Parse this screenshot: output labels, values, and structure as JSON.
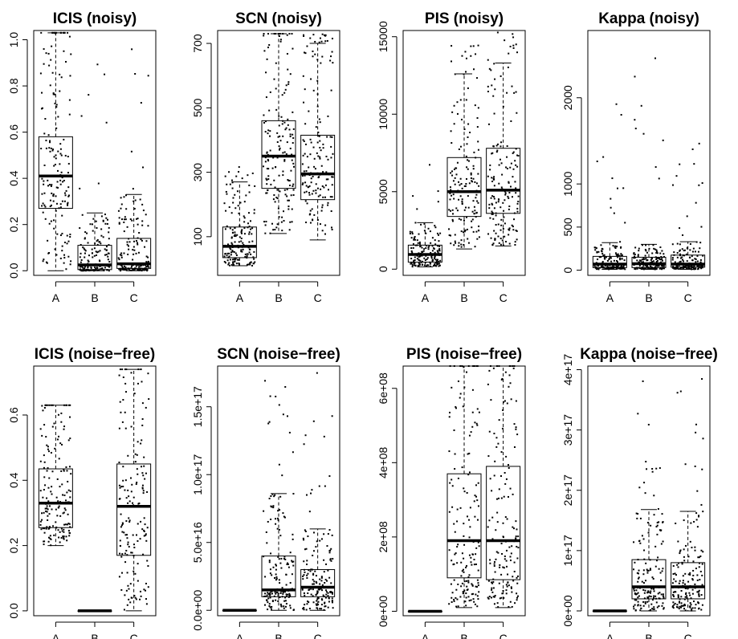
{
  "chart_data": [
    {
      "type": "box",
      "title": "ICIS (noisy)",
      "categories": [
        "A",
        "B",
        "C"
      ],
      "ylim": [
        -0.02,
        1.04
      ],
      "yticks": [
        0.0,
        0.2,
        0.4,
        0.6,
        0.8,
        1.0
      ],
      "ytick_labels": [
        "0.0",
        "0.2",
        "0.4",
        "0.6",
        "0.8",
        "1.0"
      ],
      "stats": [
        {
          "min": 0.0,
          "q1": 0.27,
          "median": 0.41,
          "q3": 0.58,
          "max": 1.03
        },
        {
          "min": 0.0,
          "q1": 0.005,
          "median": 0.025,
          "q3": 0.11,
          "max": 0.25,
          "outlier_max": 0.92
        },
        {
          "min": 0.0,
          "q1": 0.01,
          "median": 0.03,
          "q3": 0.14,
          "max": 0.33,
          "outlier_max": 1.03
        }
      ]
    },
    {
      "type": "box",
      "title": "SCN (noisy)",
      "categories": [
        "A",
        "B",
        "C"
      ],
      "ylim": [
        -20,
        740
      ],
      "yticks": [
        100,
        300,
        500,
        700
      ],
      "ytick_labels": [
        "100",
        "300",
        "500",
        "700"
      ],
      "stats": [
        {
          "min": 10,
          "q1": 35,
          "median": 70,
          "q3": 130,
          "max": 270,
          "outlier_max": 320
        },
        {
          "min": 110,
          "q1": 250,
          "median": 350,
          "q3": 460,
          "max": 730
        },
        {
          "min": 90,
          "q1": 215,
          "median": 295,
          "q3": 415,
          "max": 700,
          "outlier_max": 730
        }
      ]
    },
    {
      "type": "box",
      "title": "PIS (noisy)",
      "categories": [
        "A",
        "B",
        "C"
      ],
      "ylim": [
        -400,
        15400
      ],
      "yticks": [
        0,
        5000,
        10000,
        15000
      ],
      "ytick_labels": [
        "0",
        "5000",
        "10000",
        "15000"
      ],
      "stats": [
        {
          "min": 150,
          "q1": 450,
          "median": 950,
          "q3": 1550,
          "max": 3000,
          "outlier_max": 7400
        },
        {
          "min": 1300,
          "q1": 3400,
          "median": 5000,
          "q3": 7200,
          "max": 12600,
          "outlier_max": 14800
        },
        {
          "min": 1500,
          "q1": 3600,
          "median": 5100,
          "q3": 7800,
          "max": 13300,
          "outlier_max": 15300
        }
      ]
    },
    {
      "type": "box",
      "title": "Kappa (noisy)",
      "categories": [
        "A",
        "B",
        "C"
      ],
      "ylim": [
        -60,
        2780
      ],
      "yticks": [
        0,
        500,
        1000,
        2000
      ],
      "ytick_labels": [
        "0",
        "500",
        "1000",
        "2000"
      ],
      "stats": [
        {
          "min": 10,
          "q1": 30,
          "median": 70,
          "q3": 160,
          "max": 320,
          "outlier_max": 2000
        },
        {
          "min": 10,
          "q1": 30,
          "median": 75,
          "q3": 150,
          "max": 300,
          "outlier_max": 2700
        },
        {
          "min": 10,
          "q1": 35,
          "median": 70,
          "q3": 175,
          "max": 330,
          "outlier_max": 1820
        }
      ]
    },
    {
      "type": "box",
      "title": "ICIS (noise−free)",
      "categories": [
        "A",
        "B",
        "C"
      ],
      "ylim": [
        -0.015,
        0.75
      ],
      "yticks": [
        0.0,
        0.2,
        0.4,
        0.6
      ],
      "ytick_labels": [
        "0.0",
        "0.2",
        "0.4",
        "0.6"
      ],
      "stats": [
        {
          "min": 0.2,
          "q1": 0.255,
          "median": 0.33,
          "q3": 0.435,
          "max": 0.63
        },
        {
          "min": 0.0,
          "q1": 0.0,
          "median": 0.0,
          "q3": 0.0,
          "max": 0.0
        },
        {
          "min": 0.0,
          "q1": 0.17,
          "median": 0.32,
          "q3": 0.45,
          "max": 0.74
        }
      ]
    },
    {
      "type": "box",
      "title": "SCN (noise−free)",
      "categories": [
        "A",
        "B",
        "C"
      ],
      "ylim": [
        -4000000000000000.0,
        1.8e+17
      ],
      "yticks": [
        0,
        5e+16,
        1e+17,
        1.5e+17
      ],
      "ytick_labels": [
        "0.0e+00",
        "5.0e+16",
        "1.0e+17",
        "1.5e+17"
      ],
      "stats": [
        {
          "min": 0,
          "q1": 0,
          "median": 0,
          "q3": 0,
          "max": 0
        },
        {
          "min": 0,
          "q1": 1e+16,
          "median": 1.5e+16,
          "q3": 4e+16,
          "max": 8.6e+16,
          "outlier_max": 1.78e+17
        },
        {
          "min": 0,
          "q1": 1e+16,
          "median": 1.7e+16,
          "q3": 3e+16,
          "max": 6e+16,
          "outlier_max": 1.75e+17
        }
      ]
    },
    {
      "type": "box",
      "title": "PIS (noise−free)",
      "categories": [
        "A",
        "B",
        "C"
      ],
      "ylim": [
        -12000000.0,
        660000000.0
      ],
      "yticks": [
        0,
        200000000.0,
        400000000.0,
        600000000.0
      ],
      "ytick_labels": [
        "0e+00",
        "2e+08",
        "4e+08",
        "6e+08"
      ],
      "stats": [
        {
          "min": 0,
          "q1": 0,
          "median": 0,
          "q3": 0,
          "max": 0
        },
        {
          "min": 10000000.0,
          "q1": 90000000.0,
          "median": 190000000.0,
          "q3": 370000000.0,
          "max": 660000000.0
        },
        {
          "min": 10000000.0,
          "q1": 85000000.0,
          "median": 190000000.0,
          "q3": 390000000.0,
          "max": 660000000.0
        }
      ]
    },
    {
      "type": "box",
      "title": "Kappa (noise−free)",
      "categories": [
        "A",
        "B",
        "C"
      ],
      "ylim": [
        -8000000000000000.0,
        4.06e+17
      ],
      "yticks": [
        0,
        1e+17,
        2e+17,
        3e+17,
        4e+17
      ],
      "ytick_labels": [
        "0e+00",
        "1e+17",
        "2e+17",
        "3e+17",
        "4e+17"
      ],
      "stats": [
        {
          "min": 0,
          "q1": 0,
          "median": 0,
          "q3": 0,
          "max": 0
        },
        {
          "min": 0,
          "q1": 2e+16,
          "median": 4e+16,
          "q3": 8.5e+16,
          "max": 1.68e+17,
          "outlier_max": 3.95e+17
        },
        {
          "min": 0,
          "q1": 2e+16,
          "median": 4e+16,
          "q3": 8e+16,
          "max": 1.65e+17,
          "outlier_max": 3.95e+17
        }
      ]
    }
  ]
}
